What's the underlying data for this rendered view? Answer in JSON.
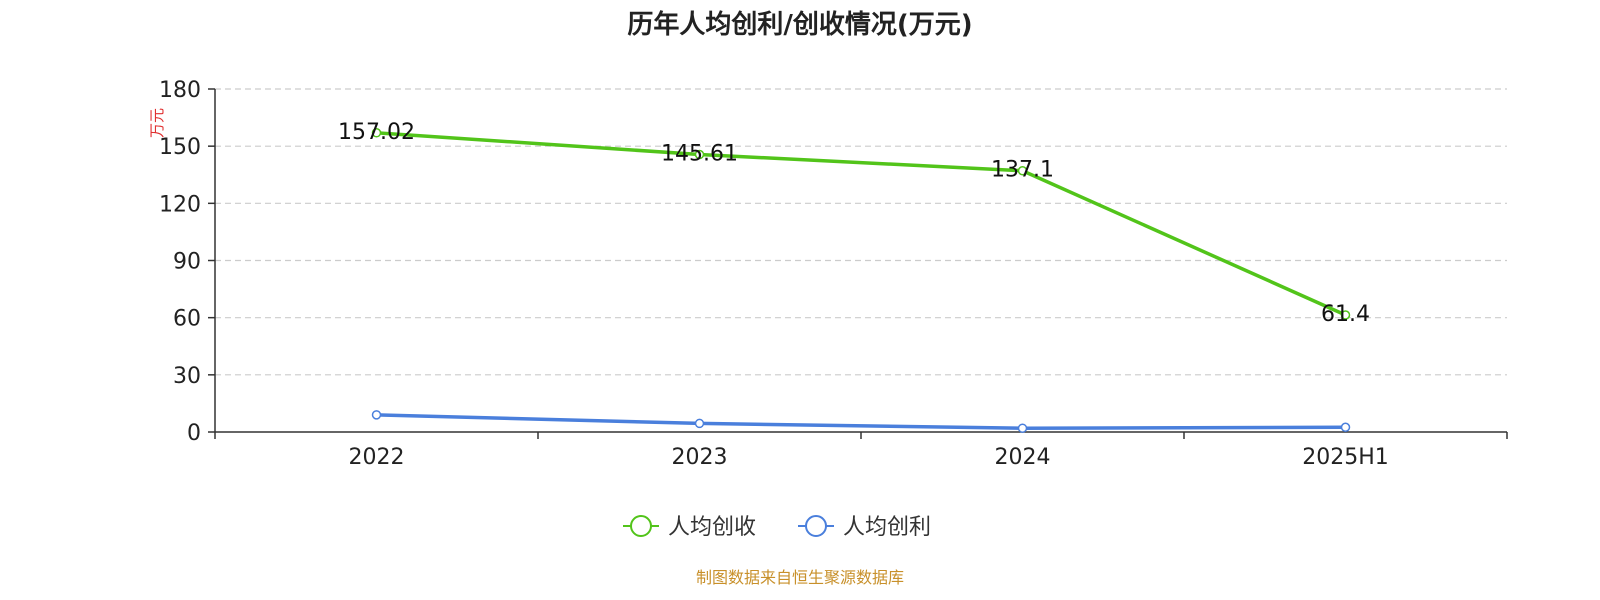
{
  "chart_data": {
    "type": "line",
    "title": "历年人均创利/创收情况(万元)",
    "ylabel": "万元",
    "categories": [
      "2022",
      "2023",
      "2024",
      "2025H1"
    ],
    "ylim": [
      0,
      180
    ],
    "yticks": [
      0,
      30,
      60,
      90,
      120,
      150,
      180
    ],
    "grid": true,
    "legend_position": "bottom-center",
    "series": [
      {
        "name": "人均创收",
        "values": [
          157.02,
          145.61,
          137.1,
          61.4
        ],
        "labels": [
          "157.02",
          "145.61",
          "137.1",
          "61.4"
        ],
        "color": "#52c41a"
      },
      {
        "name": "人均创利",
        "values": [
          9.0,
          4.5,
          2.0,
          2.5
        ],
        "labels": [],
        "color": "#4a7fdc"
      }
    ]
  },
  "source_text": "制图数据来自恒生聚源数据库"
}
